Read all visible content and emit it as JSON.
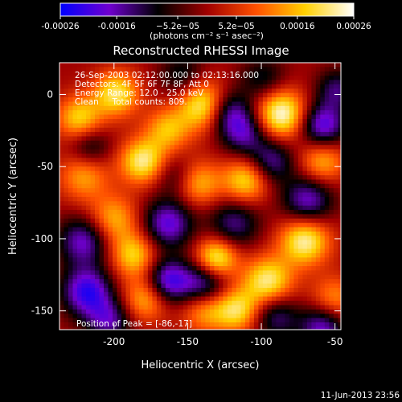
{
  "chart_data": {
    "type": "heatmap",
    "title": "Reconstructed RHESSI Image",
    "xlabel": "Heliocentric X (arcsec)",
    "ylabel": "Heliocentric Y (arcsec)",
    "xlim": [
      -237,
      -46
    ],
    "ylim": [
      -163,
      22
    ],
    "x_ticks": [
      -200,
      -150,
      -100,
      -50
    ],
    "y_ticks": [
      0,
      -50,
      -100,
      -150
    ],
    "colorbar": {
      "range": [
        -0.00026,
        0.00026
      ],
      "tick_values": [
        -0.00026,
        -0.00016,
        -5.2e-05,
        5.2e-05,
        0.00016,
        0.00026
      ],
      "tick_labels": [
        "-0.00026",
        "-0.00016",
        "−5.2e−05",
        "5.2e−05",
        "0.00016",
        "0.00026"
      ],
      "units_label": "(photons cm⁻² s⁻¹ asec⁻²)",
      "colormap": [
        "#0000ff",
        "#7000d0",
        "#000000",
        "#a00000",
        "#ff5000",
        "#ffd000",
        "#ffffff"
      ]
    },
    "annotations": [
      "26-Sep-2003 02:12:00.000 to 02:13:16.000",
      "Detectors: 4F 5F 6F 7F 8F, Att 0",
      "Energy Range: 12.0 - 25.0 keV",
      "Clean     Total counts: 809."
    ],
    "peak_label": "Position of Peak = [-86,-17]",
    "peak": [
      -86,
      -17
    ],
    "blobs": [
      {
        "x": -88,
        "y": -12,
        "v": 1.0,
        "s": 12
      },
      {
        "x": -140,
        "y": -6,
        "v": 0.95,
        "s": 12
      },
      {
        "x": -200,
        "y": 2,
        "v": 0.8,
        "s": 11
      },
      {
        "x": -225,
        "y": -15,
        "v": 0.7,
        "s": 11
      },
      {
        "x": -165,
        "y": -23,
        "v": 0.6,
        "s": 11
      },
      {
        "x": -182,
        "y": -45,
        "v": 0.85,
        "s": 11
      },
      {
        "x": -202,
        "y": -85,
        "v": 0.6,
        "s": 12
      },
      {
        "x": -222,
        "y": -55,
        "v": 0.55,
        "s": 12
      },
      {
        "x": -188,
        "y": -110,
        "v": 0.7,
        "s": 11
      },
      {
        "x": -180,
        "y": -140,
        "v": 0.65,
        "s": 11
      },
      {
        "x": -144,
        "y": -60,
        "v": 0.6,
        "s": 11
      },
      {
        "x": -132,
        "y": -112,
        "v": 0.9,
        "s": 10
      },
      {
        "x": -112,
        "y": -58,
        "v": 0.75,
        "s": 11
      },
      {
        "x": -97,
        "y": -128,
        "v": 0.85,
        "s": 12
      },
      {
        "x": -118,
        "y": -148,
        "v": 0.75,
        "s": 11
      },
      {
        "x": -72,
        "y": -100,
        "v": 0.9,
        "s": 12
      },
      {
        "x": -60,
        "y": -45,
        "v": 0.6,
        "s": 11
      },
      {
        "x": -52,
        "y": -140,
        "v": 0.5,
        "s": 11
      },
      {
        "x": -140,
        "y": -148,
        "v": 0.55,
        "s": 11
      },
      {
        "x": -220,
        "y": -135,
        "v": -0.85,
        "s": 12
      },
      {
        "x": -222,
        "y": -100,
        "v": -0.7,
        "s": 12
      },
      {
        "x": -165,
        "y": -88,
        "v": -0.75,
        "s": 12
      },
      {
        "x": -165,
        "y": -128,
        "v": -0.85,
        "s": 11
      },
      {
        "x": -125,
        "y": -10,
        "v": -0.7,
        "s": 11
      },
      {
        "x": -113,
        "y": -25,
        "v": -0.6,
        "s": 11
      },
      {
        "x": -95,
        "y": -45,
        "v": -0.6,
        "s": 11
      },
      {
        "x": -60,
        "y": -20,
        "v": -0.8,
        "s": 11
      },
      {
        "x": -70,
        "y": -72,
        "v": -0.7,
        "s": 12
      },
      {
        "x": -120,
        "y": -88,
        "v": -0.55,
        "s": 12
      },
      {
        "x": -140,
        "y": -130,
        "v": -0.7,
        "s": 11
      },
      {
        "x": -92,
        "y": -152,
        "v": -0.55,
        "s": 11
      },
      {
        "x": -60,
        "y": -160,
        "v": -0.7,
        "s": 11
      },
      {
        "x": -155,
        "y": 15,
        "v": -0.4,
        "s": 11
      },
      {
        "x": -218,
        "y": -35,
        "v": -0.45,
        "s": 10
      },
      {
        "x": -100,
        "y": 12,
        "v": -0.4,
        "s": 11
      },
      {
        "x": -205,
        "y": -155,
        "v": -0.6,
        "s": 11
      },
      {
        "x": -160,
        "y": -55,
        "v": -0.35,
        "s": 10
      },
      {
        "x": -50,
        "y": 5,
        "v": -0.5,
        "s": 10
      }
    ]
  },
  "footer": {
    "timestamp": "11-Jun-2013 23:56"
  }
}
